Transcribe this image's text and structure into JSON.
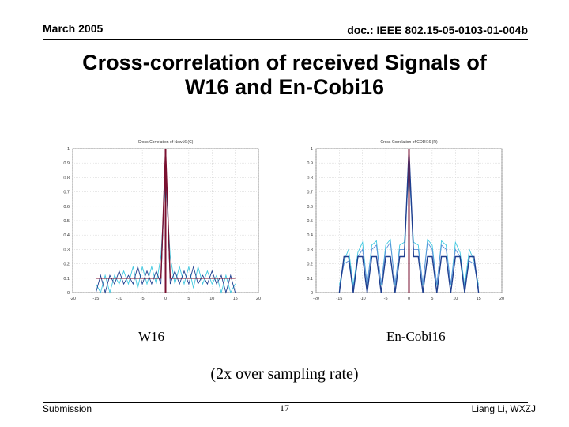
{
  "header": {
    "date": "March 2005",
    "doc_id": "doc.: IEEE 802.15-05-0103-01-004b"
  },
  "slide": {
    "title_line1": "Cross-correlation of received Signals of",
    "title_line2": "W16 and En-Cobi16",
    "label_left": "W16",
    "label_right": "En-Cobi16",
    "note": "(2x over sampling rate)"
  },
  "footer": {
    "left": "Submission",
    "page": "17",
    "right": "Liang Li, WXZJ"
  },
  "colors": {
    "peak": "#7a1030",
    "series_a": "#1f3f8f",
    "series_b": "#5a8fd8",
    "series_c": "#40c8e0",
    "grid": "#c8c8c8"
  },
  "chart_data": [
    {
      "type": "line",
      "title": "Cross Correlation of New16 (C)",
      "xlim": [
        -20,
        20
      ],
      "ylim": [
        0,
        1
      ],
      "xticks": [
        -20,
        -15,
        -10,
        -5,
        0,
        5,
        10,
        15,
        20
      ],
      "yticks": [
        0,
        0.1,
        0.2,
        0.3,
        0.4,
        0.5,
        0.6,
        0.7,
        0.8,
        0.9,
        1
      ],
      "grid": true,
      "series": [
        {
          "x": [
            -15,
            -14,
            -13,
            -12,
            -11,
            -10,
            -9,
            -8,
            -7,
            -6,
            -5,
            -4,
            -3,
            -2,
            -1,
            0,
            1,
            2,
            3,
            4,
            5,
            6,
            7,
            8,
            9,
            10,
            11,
            12,
            13,
            14,
            15
          ],
          "values": [
            0.1,
            0.1,
            0.1,
            0.1,
            0.1,
            0.1,
            0.1,
            0.1,
            0.1,
            0.1,
            0.1,
            0.1,
            0.1,
            0.1,
            0.1,
            1,
            0.1,
            0.1,
            0.1,
            0.1,
            0.1,
            0.1,
            0.1,
            0.1,
            0.1,
            0.1,
            0.1,
            0.1,
            0.1,
            0.1,
            0.1
          ]
        },
        {
          "x": [
            -15,
            -14,
            -13,
            -12,
            -11,
            -10,
            -9,
            -8,
            -7,
            -6,
            -5,
            -4,
            -3,
            -2,
            -1,
            0,
            1,
            2,
            3,
            4,
            5,
            6,
            7,
            8,
            9,
            10,
            11,
            12,
            13,
            14,
            15
          ],
          "values": [
            0,
            0.12,
            0,
            0.12,
            0.06,
            0.15,
            0.06,
            0.12,
            0.06,
            0.18,
            0.06,
            0.15,
            0.06,
            0.15,
            0.06,
            0.95,
            0.06,
            0.15,
            0.06,
            0.15,
            0.06,
            0.18,
            0.06,
            0.12,
            0.06,
            0.15,
            0.06,
            0.12,
            0,
            0.12,
            0
          ]
        },
        {
          "x": [
            -15,
            -14,
            -13,
            -12,
            -11,
            -10,
            -9,
            -8,
            -7,
            -6,
            -5,
            -4,
            -3,
            -2,
            -1,
            0,
            1,
            2,
            3,
            4,
            5,
            6,
            7,
            8,
            9,
            10,
            11,
            12,
            13,
            14,
            15
          ],
          "values": [
            0.06,
            0,
            0.12,
            0,
            0.12,
            0.06,
            0.15,
            0.06,
            0.18,
            0.03,
            0.18,
            0.06,
            0.18,
            0.06,
            0.25,
            0.8,
            0.25,
            0.06,
            0.18,
            0.06,
            0.18,
            0.03,
            0.18,
            0.06,
            0.15,
            0.06,
            0.12,
            0,
            0.12,
            0,
            0.06
          ]
        }
      ]
    },
    {
      "type": "line",
      "title": "Cross Correlation of CODI16 (R)",
      "xlim": [
        -20,
        20
      ],
      "ylim": [
        0,
        1
      ],
      "xticks": [
        -20,
        -15,
        -10,
        -5,
        0,
        5,
        10,
        15,
        20
      ],
      "yticks": [
        0,
        0.1,
        0.2,
        0.3,
        0.4,
        0.5,
        0.6,
        0.7,
        0.8,
        0.9,
        1
      ],
      "grid": true,
      "series": [
        {
          "x": [
            -15,
            -14,
            -13,
            -12,
            -11,
            -10,
            -9,
            -8,
            -7,
            -6,
            -5,
            -4,
            -3,
            -2,
            -1,
            0,
            1,
            2,
            3,
            4,
            5,
            6,
            7,
            8,
            9,
            10,
            11,
            12,
            13,
            14,
            15
          ],
          "values": [
            0,
            0.25,
            0.25,
            0,
            0.25,
            0.25,
            0,
            0.25,
            0.25,
            0,
            0.25,
            0.25,
            0,
            0.25,
            0.25,
            1,
            0.25,
            0.25,
            0,
            0.25,
            0.25,
            0,
            0.25,
            0.25,
            0,
            0.25,
            0.25,
            0,
            0.25,
            0.25,
            0
          ]
        },
        {
          "x": [
            -15,
            -14,
            -13,
            -12,
            -11,
            -10,
            -9,
            -8,
            -7,
            -6,
            -5,
            -4,
            -3,
            -2,
            -1,
            0,
            1,
            2,
            3,
            4,
            5,
            6,
            7,
            8,
            9,
            10,
            11,
            12,
            13,
            14,
            15
          ],
          "values": [
            0.03,
            0.2,
            0.22,
            0.03,
            0.25,
            0.3,
            0.06,
            0.3,
            0.33,
            0.06,
            0.3,
            0.35,
            0.06,
            0.3,
            0.3,
            0.9,
            0.3,
            0.3,
            0.06,
            0.35,
            0.3,
            0.06,
            0.33,
            0.3,
            0.06,
            0.3,
            0.25,
            0.03,
            0.22,
            0.2,
            0.03
          ]
        },
        {
          "x": [
            -15,
            -14,
            -13,
            -12,
            -11,
            -10,
            -9,
            -8,
            -7,
            -6,
            -5,
            -4,
            -3,
            -2,
            -1,
            0,
            1,
            2,
            3,
            4,
            5,
            6,
            7,
            8,
            9,
            10,
            11,
            12,
            13,
            14,
            15
          ],
          "values": [
            0.05,
            0.22,
            0.3,
            0.05,
            0.28,
            0.35,
            0.05,
            0.33,
            0.36,
            0.05,
            0.33,
            0.37,
            0.05,
            0.33,
            0.35,
            0.85,
            0.35,
            0.33,
            0.05,
            0.37,
            0.33,
            0.05,
            0.36,
            0.33,
            0.05,
            0.35,
            0.28,
            0.05,
            0.3,
            0.22,
            0.05
          ]
        }
      ]
    }
  ]
}
